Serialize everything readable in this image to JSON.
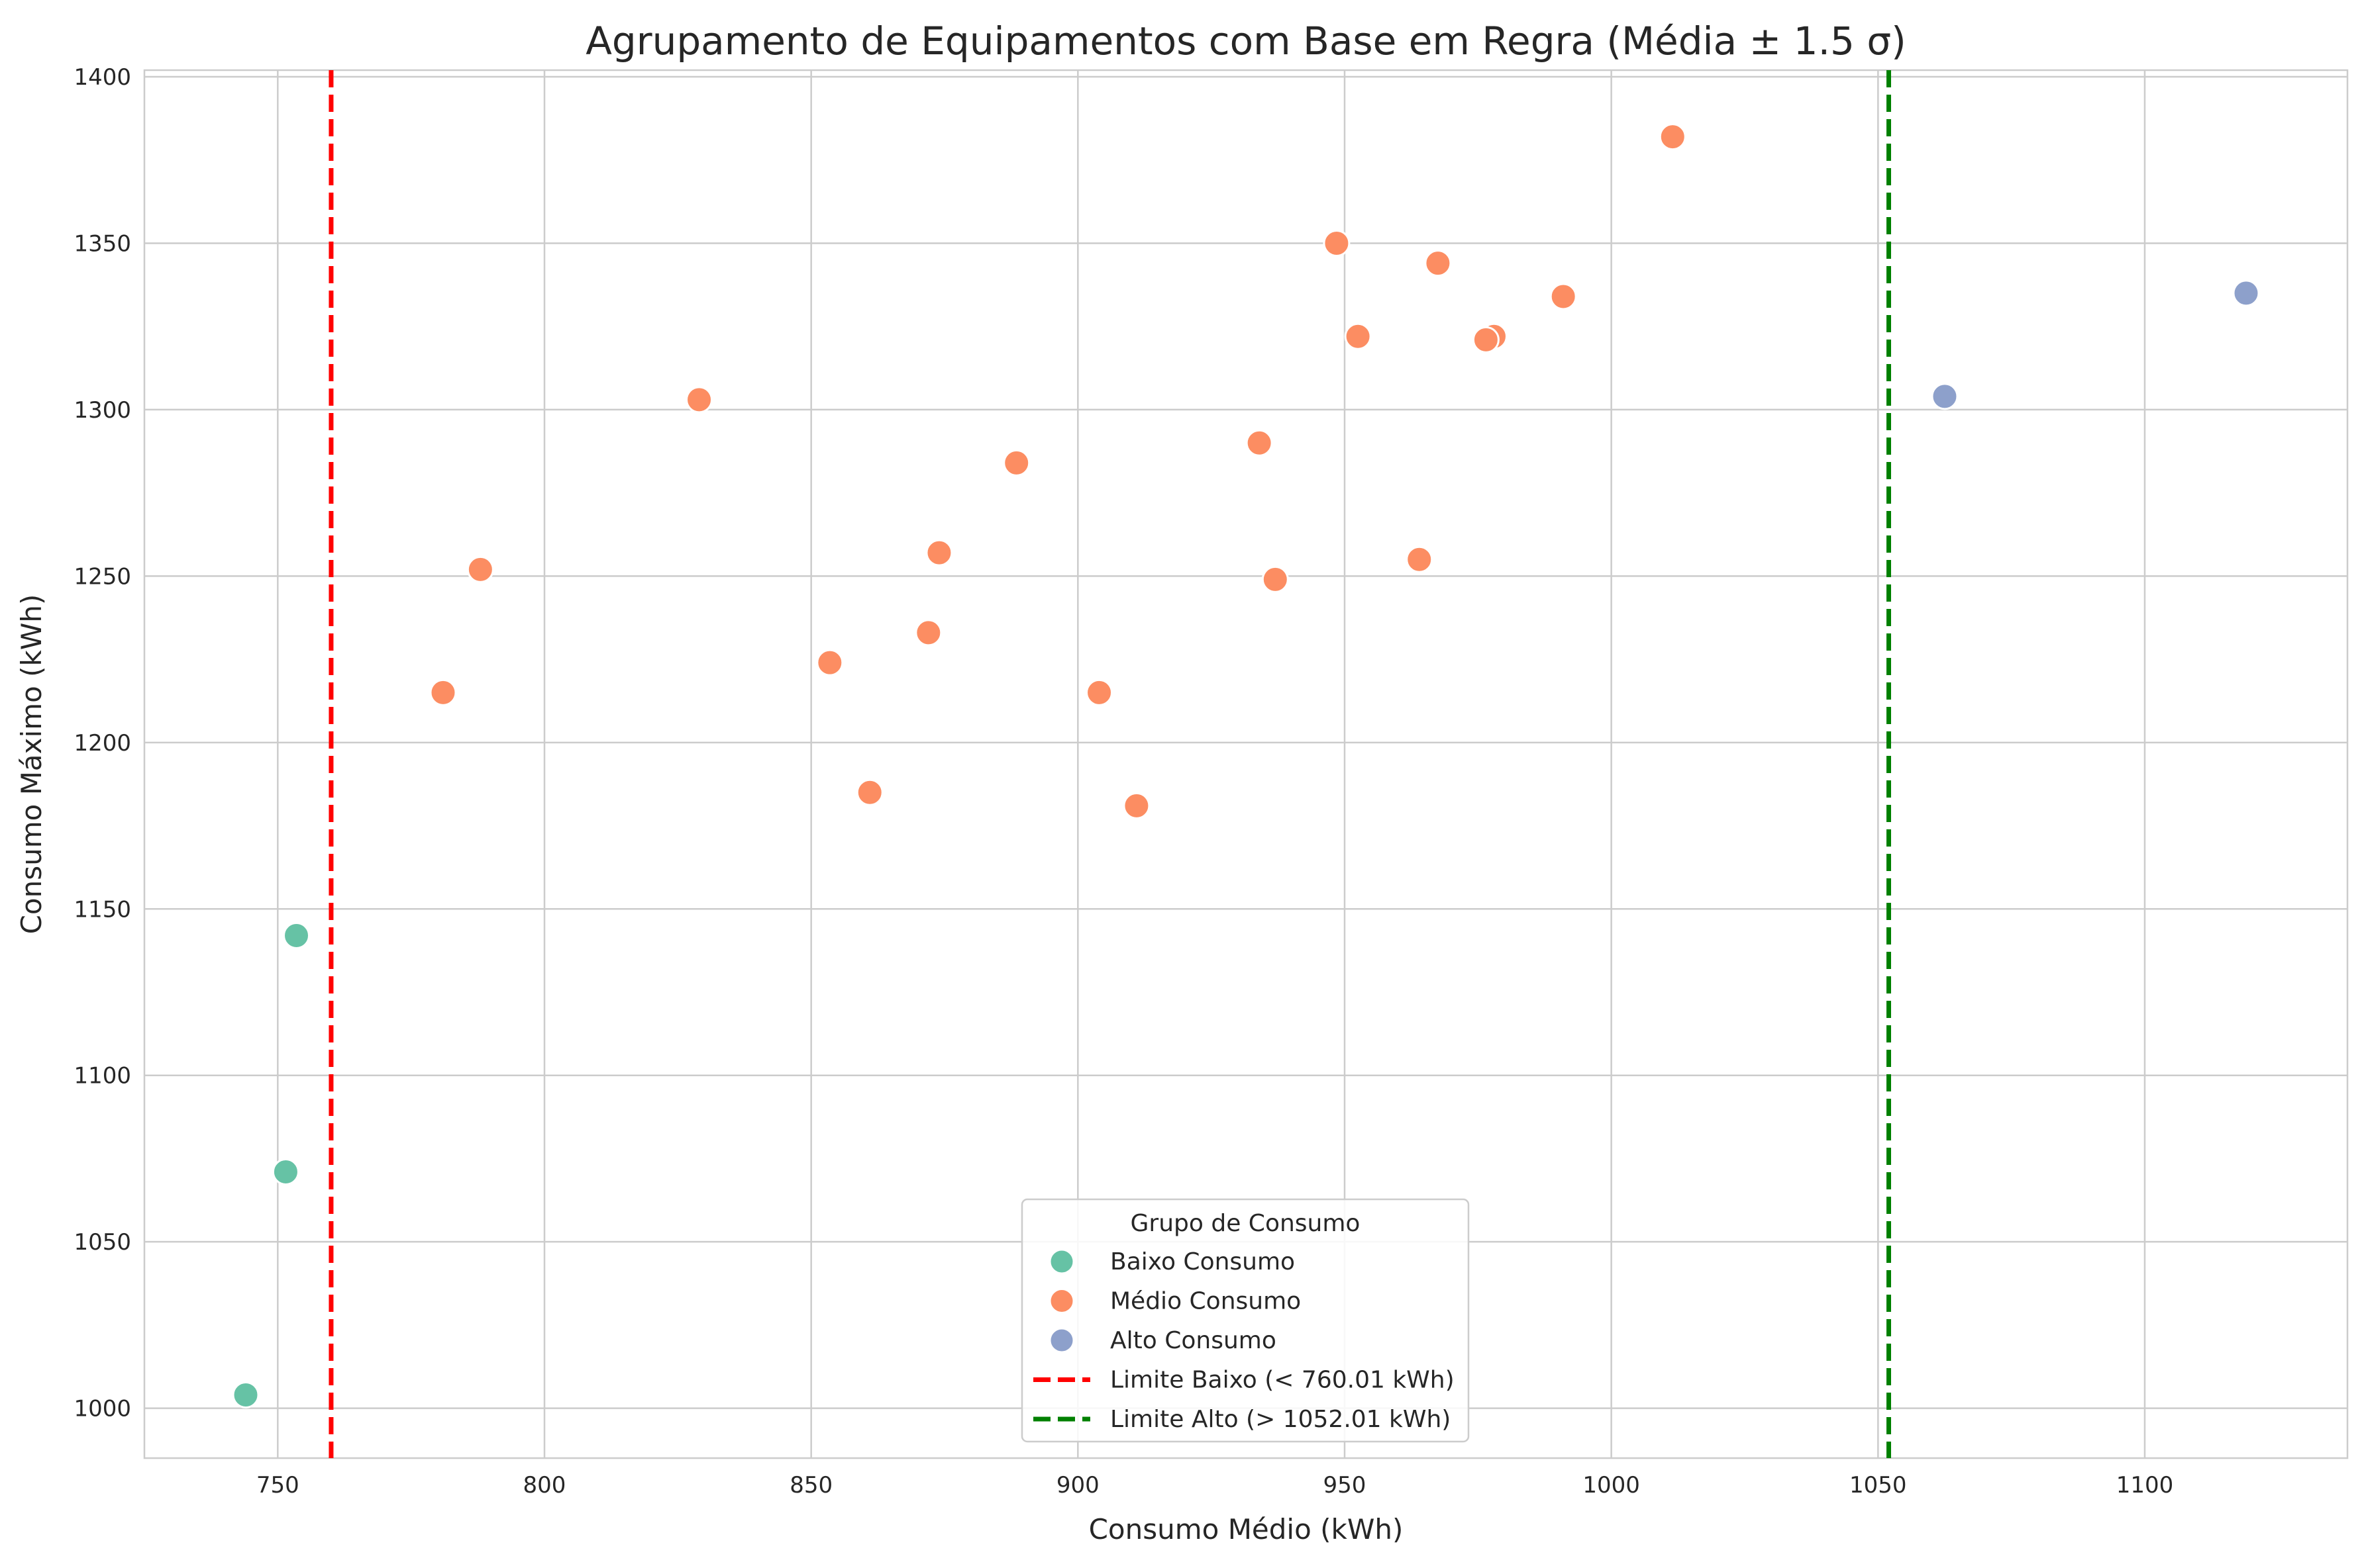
{
  "chart_data": {
    "type": "scatter",
    "title": "Agrupamento de Equipamentos com Base em Regra (Média ± 1.5 σ)",
    "xlabel": "Consumo Médio (kWh)",
    "ylabel": "Consumo Máximo (kWh)",
    "xlim": [
      725,
      1138
    ],
    "ylim": [
      985,
      1402
    ],
    "xticks": [
      750,
      800,
      850,
      900,
      950,
      1000,
      1050,
      1100
    ],
    "yticks": [
      1000,
      1050,
      1100,
      1150,
      1200,
      1250,
      1300,
      1350,
      1400
    ],
    "grid": true,
    "legend": {
      "title": "Grupo de Consumo",
      "placement": "bottom-center"
    },
    "series": [
      {
        "name": "Baixo Consumo",
        "color": "#66c2a5",
        "points": [
          {
            "x": 753.5,
            "y": 1142
          },
          {
            "x": 751.5,
            "y": 1071
          },
          {
            "x": 744,
            "y": 1004
          }
        ]
      },
      {
        "name": "Médio Consumo",
        "color": "#fc8d62",
        "points": [
          {
            "x": 1011.5,
            "y": 1382
          },
          {
            "x": 948.5,
            "y": 1350
          },
          {
            "x": 967.5,
            "y": 1344
          },
          {
            "x": 991,
            "y": 1334
          },
          {
            "x": 952.5,
            "y": 1322
          },
          {
            "x": 978,
            "y": 1322
          },
          {
            "x": 976.5,
            "y": 1321
          },
          {
            "x": 829,
            "y": 1303
          },
          {
            "x": 934,
            "y": 1290
          },
          {
            "x": 888.5,
            "y": 1284
          },
          {
            "x": 874,
            "y": 1257
          },
          {
            "x": 964,
            "y": 1255
          },
          {
            "x": 788,
            "y": 1252
          },
          {
            "x": 937,
            "y": 1249
          },
          {
            "x": 872,
            "y": 1233
          },
          {
            "x": 853.5,
            "y": 1224
          },
          {
            "x": 781,
            "y": 1215
          },
          {
            "x": 904,
            "y": 1215
          },
          {
            "x": 861,
            "y": 1185
          },
          {
            "x": 911,
            "y": 1181
          }
        ]
      },
      {
        "name": "Alto Consumo",
        "color": "#8da0cb",
        "points": [
          {
            "x": 1062.5,
            "y": 1304
          },
          {
            "x": 1119,
            "y": 1335
          }
        ]
      }
    ],
    "reference_lines": [
      {
        "name": "Limite Baixo (< 760.01 kWh)",
        "x": 760.01,
        "color": "#ff0000",
        "style": "dashed"
      },
      {
        "name": "Limite Alto (> 1052.01 kWh)",
        "x": 1052.01,
        "color": "#008000",
        "style": "dashed"
      }
    ]
  }
}
